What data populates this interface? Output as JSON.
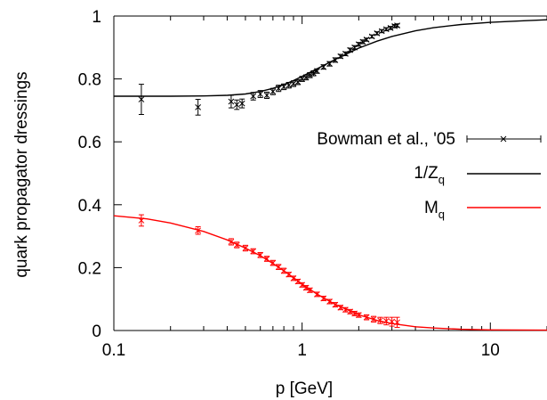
{
  "chart_data": {
    "type": "scatter",
    "xlabel": "p [GeV]",
    "ylabel": "quark propagator dressings",
    "xscale": "log",
    "xlim": [
      0.1,
      20
    ],
    "ylim": [
      0,
      1
    ],
    "x_ticks": [
      {
        "value": 0.1,
        "label": "0.1"
      },
      {
        "value": 1,
        "label": "1"
      },
      {
        "value": 10,
        "label": "10"
      }
    ],
    "y_ticks": [
      {
        "value": 0,
        "label": "0"
      },
      {
        "value": 0.2,
        "label": "0.2"
      },
      {
        "value": 0.4,
        "label": "0.4"
      },
      {
        "value": 0.6,
        "label": "0.6"
      },
      {
        "value": 0.8,
        "label": "0.8"
      },
      {
        "value": 1,
        "label": "1"
      }
    ],
    "grid": false,
    "legend": {
      "placement": "right",
      "entries": [
        {
          "label": "Bowman et al., '05",
          "marker": "cross-with-errorbars",
          "color": "#000000"
        },
        {
          "label": "1/Z",
          "sub": "q",
          "marker": "line",
          "color": "#000000"
        },
        {
          "label": "M",
          "sub": "q",
          "marker": "line",
          "color": "#ff0000"
        }
      ]
    },
    "series": [
      {
        "name": "Bowman et al., '05 (1/Zq)",
        "kind": "points",
        "color": "#000000",
        "points": [
          {
            "x": 0.14,
            "y": 0.735,
            "err": 0.048
          },
          {
            "x": 0.28,
            "y": 0.71,
            "err": 0.025
          },
          {
            "x": 0.42,
            "y": 0.728,
            "err": 0.02
          },
          {
            "x": 0.45,
            "y": 0.718,
            "err": 0.015
          },
          {
            "x": 0.48,
            "y": 0.722,
            "err": 0.014
          },
          {
            "x": 0.55,
            "y": 0.745,
            "err": 0.012
          },
          {
            "x": 0.6,
            "y": 0.752,
            "err": 0.011
          },
          {
            "x": 0.65,
            "y": 0.748,
            "err": 0.01
          },
          {
            "x": 0.7,
            "y": 0.76,
            "err": 0.01
          },
          {
            "x": 0.75,
            "y": 0.77,
            "err": 0.01
          },
          {
            "x": 0.8,
            "y": 0.775,
            "err": 0.009
          },
          {
            "x": 0.85,
            "y": 0.78,
            "err": 0.009
          },
          {
            "x": 0.9,
            "y": 0.785,
            "err": 0.009
          },
          {
            "x": 0.95,
            "y": 0.79,
            "err": 0.008
          },
          {
            "x": 1.0,
            "y": 0.8,
            "err": 0.008
          },
          {
            "x": 1.05,
            "y": 0.805,
            "err": 0.008
          },
          {
            "x": 1.1,
            "y": 0.812,
            "err": 0.008
          },
          {
            "x": 1.15,
            "y": 0.818,
            "err": 0.008
          },
          {
            "x": 1.2,
            "y": 0.825,
            "err": 0.007
          },
          {
            "x": 1.3,
            "y": 0.838,
            "err": 0.007
          },
          {
            "x": 1.4,
            "y": 0.848,
            "err": 0.007
          },
          {
            "x": 1.5,
            "y": 0.86,
            "err": 0.007
          },
          {
            "x": 1.6,
            "y": 0.872,
            "err": 0.006
          },
          {
            "x": 1.7,
            "y": 0.88,
            "err": 0.006
          },
          {
            "x": 1.8,
            "y": 0.892,
            "err": 0.006
          },
          {
            "x": 1.9,
            "y": 0.9,
            "err": 0.006
          },
          {
            "x": 2.0,
            "y": 0.91,
            "err": 0.006
          },
          {
            "x": 2.1,
            "y": 0.918,
            "err": 0.006
          },
          {
            "x": 2.2,
            "y": 0.925,
            "err": 0.005
          },
          {
            "x": 2.35,
            "y": 0.935,
            "err": 0.005
          },
          {
            "x": 2.5,
            "y": 0.945,
            "err": 0.005
          },
          {
            "x": 2.65,
            "y": 0.952,
            "err": 0.005
          },
          {
            "x": 2.8,
            "y": 0.958,
            "err": 0.005
          },
          {
            "x": 2.95,
            "y": 0.962,
            "err": 0.005
          },
          {
            "x": 3.1,
            "y": 0.968,
            "err": 0.005
          },
          {
            "x": 3.2,
            "y": 0.97,
            "err": 0.005
          }
        ]
      },
      {
        "name": "Bowman et al., '05 (Mq)",
        "kind": "points",
        "color": "#ff0000",
        "points": [
          {
            "x": 0.14,
            "y": 0.35,
            "err": 0.018
          },
          {
            "x": 0.28,
            "y": 0.318,
            "err": 0.012
          },
          {
            "x": 0.42,
            "y": 0.282,
            "err": 0.01
          },
          {
            "x": 0.45,
            "y": 0.272,
            "err": 0.009
          },
          {
            "x": 0.5,
            "y": 0.262,
            "err": 0.009
          },
          {
            "x": 0.55,
            "y": 0.252,
            "err": 0.008
          },
          {
            "x": 0.6,
            "y": 0.24,
            "err": 0.008
          },
          {
            "x": 0.65,
            "y": 0.228,
            "err": 0.008
          },
          {
            "x": 0.7,
            "y": 0.215,
            "err": 0.008
          },
          {
            "x": 0.75,
            "y": 0.202,
            "err": 0.008
          },
          {
            "x": 0.8,
            "y": 0.19,
            "err": 0.008
          },
          {
            "x": 0.85,
            "y": 0.178,
            "err": 0.007
          },
          {
            "x": 0.9,
            "y": 0.166,
            "err": 0.007
          },
          {
            "x": 0.95,
            "y": 0.156,
            "err": 0.007
          },
          {
            "x": 1.0,
            "y": 0.145,
            "err": 0.007
          },
          {
            "x": 1.05,
            "y": 0.136,
            "err": 0.007
          },
          {
            "x": 1.1,
            "y": 0.128,
            "err": 0.007
          },
          {
            "x": 1.2,
            "y": 0.115,
            "err": 0.007
          },
          {
            "x": 1.3,
            "y": 0.102,
            "err": 0.007
          },
          {
            "x": 1.4,
            "y": 0.092,
            "err": 0.007
          },
          {
            "x": 1.5,
            "y": 0.082,
            "err": 0.007
          },
          {
            "x": 1.6,
            "y": 0.073,
            "err": 0.007
          },
          {
            "x": 1.7,
            "y": 0.066,
            "err": 0.007
          },
          {
            "x": 1.8,
            "y": 0.06,
            "err": 0.007
          },
          {
            "x": 1.9,
            "y": 0.054,
            "err": 0.007
          },
          {
            "x": 2.0,
            "y": 0.049,
            "err": 0.007
          },
          {
            "x": 2.2,
            "y": 0.042,
            "err": 0.008
          },
          {
            "x": 2.4,
            "y": 0.036,
            "err": 0.009
          },
          {
            "x": 2.6,
            "y": 0.032,
            "err": 0.01
          },
          {
            "x": 2.8,
            "y": 0.03,
            "err": 0.012
          },
          {
            "x": 3.0,
            "y": 0.028,
            "err": 0.014
          },
          {
            "x": 3.2,
            "y": 0.026,
            "err": 0.016
          }
        ]
      },
      {
        "name": "1/Zq",
        "kind": "line",
        "color": "#000000",
        "points": [
          {
            "x": 0.1,
            "y": 0.745
          },
          {
            "x": 0.2,
            "y": 0.745
          },
          {
            "x": 0.3,
            "y": 0.746
          },
          {
            "x": 0.4,
            "y": 0.748
          },
          {
            "x": 0.5,
            "y": 0.752
          },
          {
            "x": 0.6,
            "y": 0.76
          },
          {
            "x": 0.7,
            "y": 0.77
          },
          {
            "x": 0.8,
            "y": 0.782
          },
          {
            "x": 0.9,
            "y": 0.795
          },
          {
            "x": 1.0,
            "y": 0.808
          },
          {
            "x": 1.2,
            "y": 0.832
          },
          {
            "x": 1.5,
            "y": 0.862
          },
          {
            "x": 2.0,
            "y": 0.898
          },
          {
            "x": 2.5,
            "y": 0.92
          },
          {
            "x": 3.0,
            "y": 0.935
          },
          {
            "x": 4.0,
            "y": 0.953
          },
          {
            "x": 5.0,
            "y": 0.963
          },
          {
            "x": 7.0,
            "y": 0.973
          },
          {
            "x": 10.0,
            "y": 0.98
          },
          {
            "x": 15.0,
            "y": 0.985
          },
          {
            "x": 20.0,
            "y": 0.988
          }
        ]
      },
      {
        "name": "Mq",
        "kind": "line",
        "color": "#ff0000",
        "points": [
          {
            "x": 0.1,
            "y": 0.365
          },
          {
            "x": 0.15,
            "y": 0.355
          },
          {
            "x": 0.2,
            "y": 0.342
          },
          {
            "x": 0.3,
            "y": 0.315
          },
          {
            "x": 0.4,
            "y": 0.288
          },
          {
            "x": 0.5,
            "y": 0.262
          },
          {
            "x": 0.6,
            "y": 0.238
          },
          {
            "x": 0.7,
            "y": 0.213
          },
          {
            "x": 0.8,
            "y": 0.19
          },
          {
            "x": 0.9,
            "y": 0.168
          },
          {
            "x": 1.0,
            "y": 0.148
          },
          {
            "x": 1.2,
            "y": 0.116
          },
          {
            "x": 1.5,
            "y": 0.083
          },
          {
            "x": 2.0,
            "y": 0.05
          },
          {
            "x": 2.5,
            "y": 0.032
          },
          {
            "x": 3.0,
            "y": 0.022
          },
          {
            "x": 4.0,
            "y": 0.012
          },
          {
            "x": 5.0,
            "y": 0.008
          },
          {
            "x": 7.0,
            "y": 0.004
          },
          {
            "x": 10.0,
            "y": 0.002
          },
          {
            "x": 20.0,
            "y": 0.001
          }
        ]
      }
    ]
  }
}
